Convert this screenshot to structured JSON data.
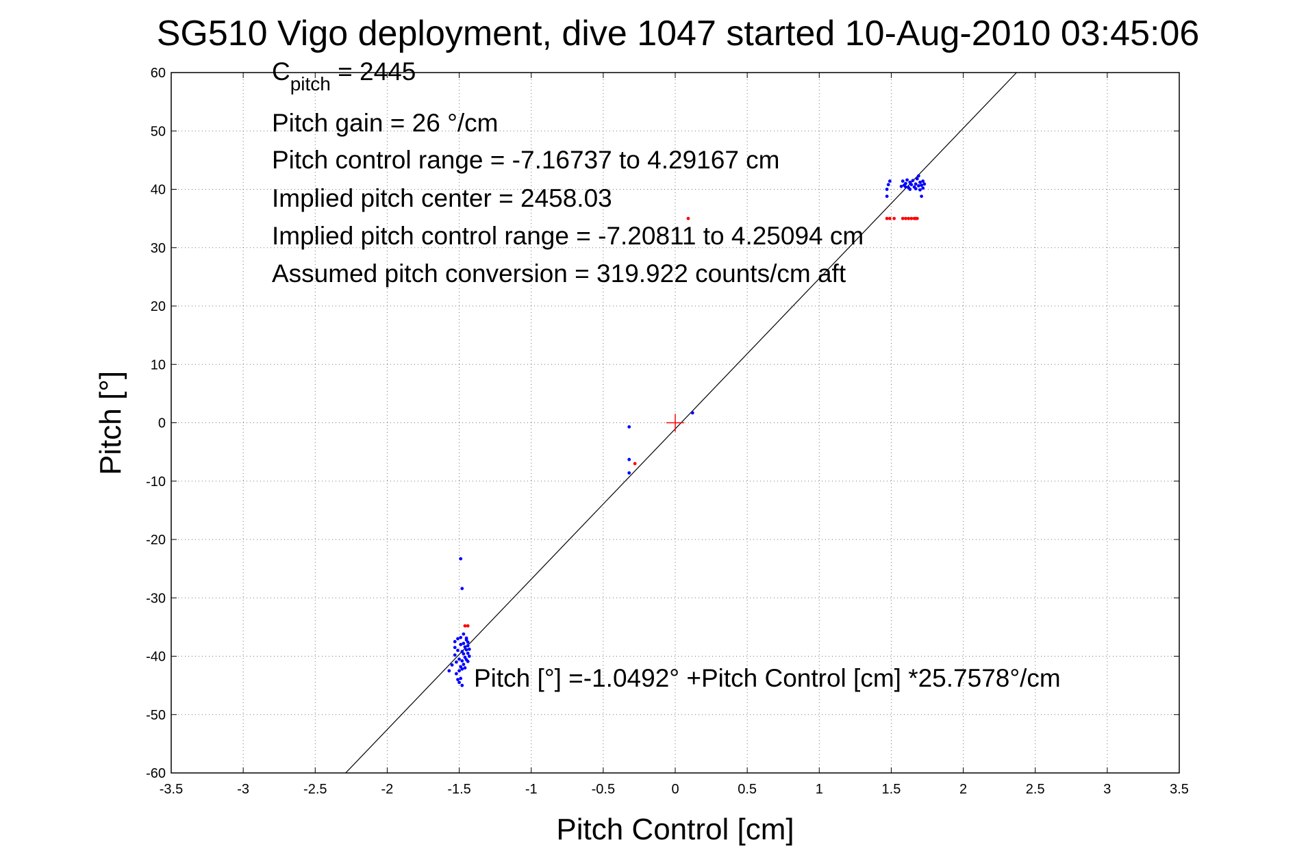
{
  "chart_data": {
    "type": "scatter",
    "title": "SG510 Vigo deployment, dive 1047 started 10-Aug-2010 03:45:06",
    "xlabel": "Pitch Control [cm]",
    "ylabel": "Pitch [°]",
    "xlim": [
      -3.5,
      3.5
    ],
    "ylim": [
      -60,
      60
    ],
    "grid": true,
    "x_ticks": [
      -3.5,
      -3,
      -2.5,
      -2,
      -1.5,
      -1,
      -0.5,
      0,
      0.5,
      1,
      1.5,
      2,
      2.5,
      3,
      3.5
    ],
    "x_tick_labels": [
      "-3.5",
      "-3",
      "-2.5",
      "-2",
      "-1.5",
      "-1",
      "-0.5",
      "0",
      "0.5",
      "1",
      "1.5",
      "2",
      "2.5",
      "3",
      "3.5"
    ],
    "y_ticks": [
      -60,
      -50,
      -40,
      -30,
      -20,
      -10,
      0,
      10,
      20,
      30,
      40,
      50,
      60
    ],
    "y_tick_labels": [
      "-60",
      "-50",
      "-40",
      "-30",
      "-20",
      "-10",
      "0",
      "10",
      "20",
      "30",
      "40",
      "50",
      "60"
    ],
    "annotations": {
      "c_pitch_base": "C",
      "c_pitch_sub": "pitch",
      "c_pitch_rest": " = 2445",
      "pitch_gain": "Pitch gain = 26 °/cm",
      "pitch_control_range": "Pitch control range = -7.16737 to 4.29167 cm",
      "implied_pitch_center": "Implied pitch center = 2458.03",
      "implied_pitch_control_range": "Implied pitch control range = -7.20811 to 4.25094 cm",
      "assumed_pitch_conversion": "Assumed pitch conversion = 319.922 counts/cm aft",
      "fit_equation": "Pitch [°] =-1.0492° +Pitch Control [cm] *25.7578°/cm"
    },
    "fit_line": {
      "intercept": -1.0492,
      "slope": 25.7578,
      "color": "#000000"
    },
    "center_marker": {
      "x": 0,
      "y": 0,
      "color": "#ff0000"
    },
    "series": [
      {
        "color": "#0000ff",
        "points": [
          [
            -1.49,
            -23.3
          ],
          [
            -1.48,
            -28.4
          ],
          [
            -1.57,
            -42.5
          ],
          [
            -1.55,
            -41.5
          ],
          [
            -1.53,
            -37.5
          ],
          [
            -1.53,
            -38.5
          ],
          [
            -1.53,
            -39.8
          ],
          [
            -1.52,
            -41.0
          ],
          [
            -1.52,
            -43.0
          ],
          [
            -1.51,
            -44.0
          ],
          [
            -1.51,
            -37.0
          ],
          [
            -1.51,
            -39.0
          ],
          [
            -1.5,
            -40.5
          ],
          [
            -1.5,
            -42.5
          ],
          [
            -1.5,
            -44.5
          ],
          [
            -1.49,
            -38.0
          ],
          [
            -1.49,
            -36.8
          ],
          [
            -1.49,
            -41.8
          ],
          [
            -1.49,
            -43.8
          ],
          [
            -1.48,
            -39.2
          ],
          [
            -1.48,
            -40.8
          ],
          [
            -1.48,
            -42.2
          ],
          [
            -1.47,
            -36.2
          ],
          [
            -1.47,
            -37.8
          ],
          [
            -1.47,
            -39.6
          ],
          [
            -1.47,
            -41.4
          ],
          [
            -1.46,
            -38.4
          ],
          [
            -1.46,
            -40.2
          ],
          [
            -1.46,
            -42.0
          ],
          [
            -1.45,
            -37.2
          ],
          [
            -1.45,
            -38.9
          ],
          [
            -1.45,
            -40.6
          ],
          [
            -1.45,
            -36.9
          ],
          [
            -1.44,
            -38.2
          ],
          [
            -1.44,
            -39.5
          ],
          [
            -1.44,
            -40.9
          ],
          [
            -1.44,
            -37.6
          ],
          [
            -1.43,
            -38.8
          ],
          [
            -1.43,
            -40.0
          ],
          [
            -1.48,
            -45.0
          ],
          [
            -0.32,
            -0.7
          ],
          [
            -0.32,
            -6.3
          ],
          [
            -0.32,
            -8.6
          ],
          [
            0.12,
            1.7
          ],
          [
            1.47,
            38.8
          ],
          [
            1.47,
            40.0
          ],
          [
            1.48,
            40.8
          ],
          [
            1.49,
            41.4
          ],
          [
            1.57,
            40.5
          ],
          [
            1.58,
            41.4
          ],
          [
            1.59,
            40.7
          ],
          [
            1.6,
            41.0
          ],
          [
            1.61,
            41.6
          ],
          [
            1.62,
            40.3
          ],
          [
            1.63,
            41.2
          ],
          [
            1.64,
            40.8
          ],
          [
            1.65,
            41.5
          ],
          [
            1.66,
            40.4
          ],
          [
            1.67,
            40.9
          ],
          [
            1.68,
            41.8
          ],
          [
            1.69,
            40.6
          ],
          [
            1.69,
            42.3
          ],
          [
            1.7,
            41.2
          ],
          [
            1.7,
            39.9
          ],
          [
            1.71,
            40.7
          ],
          [
            1.71,
            38.8
          ],
          [
            1.72,
            41.4
          ],
          [
            1.72,
            40.2
          ],
          [
            1.73,
            40.9
          ],
          [
            1.67,
            40.1
          ],
          [
            1.63,
            40.0
          ],
          [
            1.6,
            40.4
          ]
        ]
      },
      {
        "color": "#ff0000",
        "points": [
          [
            -1.46,
            -34.8
          ],
          [
            -1.44,
            -34.8
          ],
          [
            -0.28,
            -7.0
          ],
          [
            0.09,
            35.0
          ],
          [
            1.47,
            35.0
          ],
          [
            1.49,
            35.0
          ],
          [
            1.52,
            35.0
          ],
          [
            1.58,
            35.0
          ],
          [
            1.6,
            35.0
          ],
          [
            1.62,
            35.0
          ],
          [
            1.64,
            35.0
          ],
          [
            1.66,
            35.0
          ],
          [
            1.67,
            35.0
          ],
          [
            1.68,
            35.0
          ]
        ]
      }
    ]
  }
}
